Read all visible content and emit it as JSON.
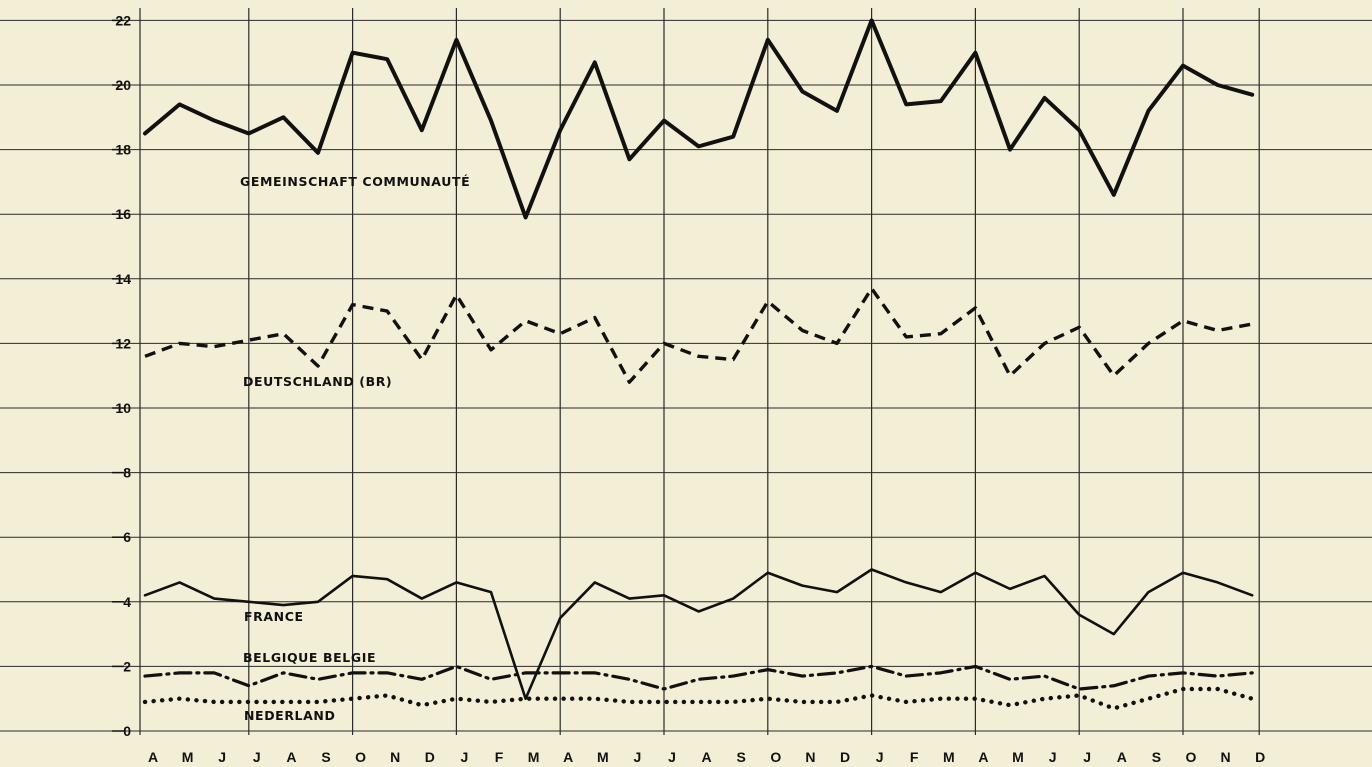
{
  "chart_data": {
    "type": "line",
    "title": "",
    "xlabel": "",
    "ylabel": "",
    "ylim": [
      0,
      22
    ],
    "yticks": [
      0,
      2,
      4,
      6,
      8,
      10,
      12,
      14,
      16,
      18,
      20,
      22
    ],
    "grid": true,
    "categories": [
      "A",
      "M",
      "J",
      "J",
      "A",
      "S",
      "O",
      "N",
      "D",
      "J",
      "F",
      "M",
      "A",
      "M",
      "J",
      "J",
      "A",
      "S",
      "O",
      "N",
      "D",
      "J",
      "F",
      "M",
      "A",
      "M",
      "J",
      "J",
      "A",
      "S",
      "O",
      "N",
      "D"
    ],
    "series": [
      {
        "name": "GEMEINSCHAFT COMMUNAUTÉ",
        "style": "solid-bold",
        "color": "#111111",
        "values": [
          18.5,
          19.4,
          18.9,
          18.5,
          19.0,
          17.9,
          21.0,
          20.8,
          18.6,
          21.4,
          18.9,
          15.9,
          18.6,
          20.7,
          17.7,
          18.9,
          18.1,
          18.4,
          21.4,
          19.8,
          19.2,
          22.0,
          19.4,
          19.5,
          21.0,
          18.0,
          19.6,
          18.6,
          16.6,
          19.2,
          20.6,
          20.0,
          19.7
        ]
      },
      {
        "name": "DEUTSCHLAND (BR)",
        "style": "dashed",
        "color": "#111111",
        "values": [
          11.6,
          12.0,
          11.9,
          12.1,
          12.3,
          11.3,
          13.2,
          13.0,
          11.5,
          13.5,
          11.8,
          12.7,
          12.3,
          12.8,
          10.8,
          12.0,
          11.6,
          11.5,
          13.3,
          12.4,
          12.0,
          13.7,
          12.2,
          12.3,
          13.1,
          11.0,
          12.0,
          12.5,
          11.0,
          12.0,
          12.7,
          12.4,
          12.6
        ]
      },
      {
        "name": "FRANCE",
        "style": "solid",
        "color": "#111111",
        "values": [
          4.2,
          4.6,
          4.1,
          4.0,
          3.9,
          4.0,
          4.8,
          4.7,
          4.1,
          4.6,
          4.3,
          1.0,
          3.5,
          4.6,
          4.1,
          4.2,
          3.7,
          4.1,
          4.9,
          4.5,
          4.3,
          5.0,
          4.6,
          4.3,
          4.9,
          4.4,
          4.8,
          3.6,
          3.0,
          4.3,
          4.9,
          4.6,
          4.2
        ]
      },
      {
        "name": "BELGIQUE BELGIE",
        "style": "dash-dot",
        "color": "#111111",
        "values": [
          1.7,
          1.8,
          1.8,
          1.4,
          1.8,
          1.6,
          1.8,
          1.8,
          1.6,
          2.0,
          1.6,
          1.8,
          1.8,
          1.8,
          1.6,
          1.3,
          1.6,
          1.7,
          1.9,
          1.7,
          1.8,
          2.0,
          1.7,
          1.8,
          2.0,
          1.6,
          1.7,
          1.3,
          1.4,
          1.7,
          1.8,
          1.7,
          1.8
        ]
      },
      {
        "name": "NEDERLAND",
        "style": "dotted",
        "color": "#111111",
        "values": [
          0.9,
          1.0,
          0.9,
          0.9,
          0.9,
          0.9,
          1.0,
          1.1,
          0.8,
          1.0,
          0.9,
          1.0,
          1.0,
          1.0,
          0.9,
          0.9,
          0.9,
          0.9,
          1.0,
          0.9,
          0.9,
          1.1,
          0.9,
          1.0,
          1.0,
          0.8,
          1.0,
          1.1,
          0.7,
          1.0,
          1.3,
          1.3,
          1.0
        ]
      }
    ]
  },
  "labels": {
    "gemeinschaft": "GEMEINSCHAFT COMMUNAUTÉ",
    "deutschland": "DEUTSCHLAND (BR)",
    "france": "FRANCE",
    "belgique": "BELGIQUE BELGIE",
    "nederland": "NEDERLAND"
  },
  "colors": {
    "background": "#f3efd7",
    "ink": "#111111",
    "grid": "#2a2a2a"
  }
}
